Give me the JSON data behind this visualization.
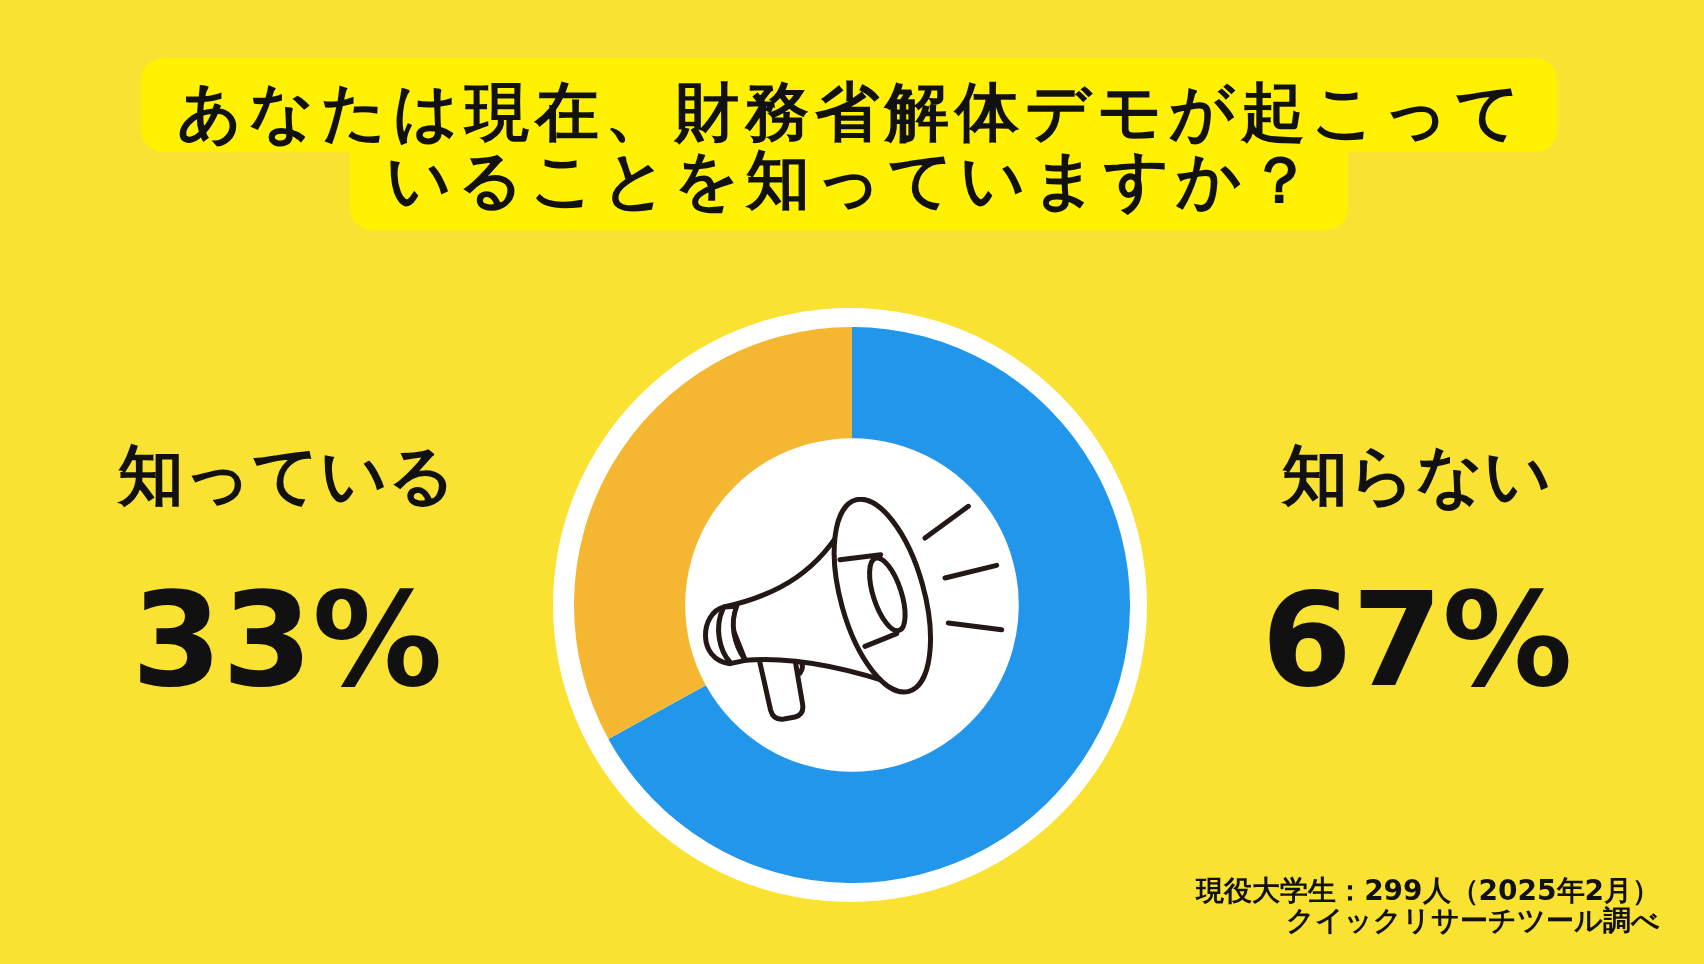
{
  "chart_data": {
    "type": "donut",
    "title": "あなたは現在、財務省解体デモが起こっていることを知っていますか？",
    "categories": [
      "知らない",
      "知っている"
    ],
    "values": [
      67,
      33
    ],
    "colors": [
      "#2196eb",
      "#f5b731"
    ],
    "value_labels": [
      "67%",
      "33%"
    ],
    "annotations": [
      "現役大学生：299人（2025年2月）",
      "クイックリサーチツール調べ"
    ]
  }
}
